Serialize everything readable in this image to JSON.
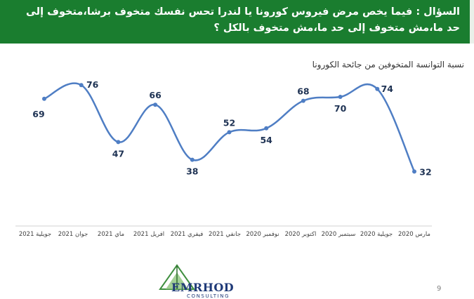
{
  "header": {
    "line1": "السؤال : فيما يخص مرض فيروس كورونا يا لندرا تحس نفسك متخوف برشا،متخوف إلى",
    "line2": "حد ما،مش متخوف إلى حد ما،مش متخوف بالكل ؟"
  },
  "page_number": "9",
  "logo": {
    "name": "EMRHOD",
    "sub": "CONSULTING"
  },
  "colors": {
    "header_bg": "#1a7d2f",
    "line": "#4f7ec4",
    "label": "#1f3354"
  },
  "chart_data": {
    "type": "line",
    "title": "نسبة التوانسة المتخوفين من جائحة الكورونا",
    "categories": [
      "جويلية 2021",
      "جوان 2021",
      "ماي 2021",
      "افريل 2021",
      "فيفري 2021",
      "جانفي 2021",
      "نوفمبر 2020",
      "اكتوبر 2020",
      "سبتمبر 2020",
      "جويلية 2020",
      "مارس 2020"
    ],
    "series": [
      {
        "values": [
          69,
          76,
          47,
          66,
          38,
          52,
          54,
          68,
          70,
          74,
          32
        ]
      }
    ],
    "data_labels": [
      "69",
      "76",
      "47",
      "66",
      "38",
      "52",
      "54",
      "68",
      "70",
      "74",
      "32"
    ],
    "ylim": [
      30,
      80
    ],
    "grid": false,
    "legend": "none"
  }
}
